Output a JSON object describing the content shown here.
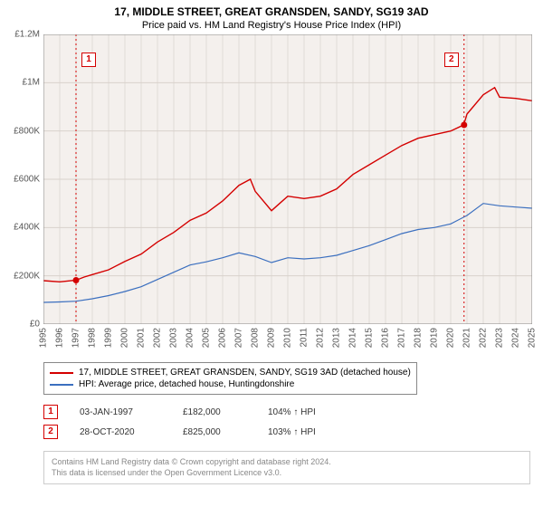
{
  "title": "17, MIDDLE STREET, GREAT GRANSDEN, SANDY, SG19 3AD",
  "subtitle": "Price paid vs. HM Land Registry's House Price Index (HPI)",
  "chart": {
    "type": "line",
    "plot_bg": "#f4f0ed",
    "grid_color": "#d9d2cc",
    "axis_color": "#888888",
    "x_years": [
      1995,
      1996,
      1997,
      1998,
      1999,
      2000,
      2001,
      2002,
      2003,
      2004,
      2005,
      2006,
      2007,
      2008,
      2009,
      2010,
      2011,
      2012,
      2013,
      2014,
      2015,
      2016,
      2017,
      2018,
      2019,
      2020,
      2021,
      2022,
      2023,
      2024,
      2025
    ],
    "ylim": [
      0,
      1200000
    ],
    "ytick_step": 200000,
    "ytick_labels": [
      "£0",
      "£200K",
      "£400K",
      "£600K",
      "£800K",
      "£1M",
      "£1.2M"
    ],
    "series": [
      {
        "name": "17, MIDDLE STREET, GREAT GRANSDEN, SANDY, SG19 3AD (detached house)",
        "color": "#d40000",
        "width": 1.4,
        "data": [
          [
            1995,
            180000
          ],
          [
            1996,
            175000
          ],
          [
            1997,
            182000
          ],
          [
            1997.5,
            195000
          ],
          [
            1998,
            205000
          ],
          [
            1999,
            225000
          ],
          [
            2000,
            260000
          ],
          [
            2001,
            290000
          ],
          [
            2002,
            340000
          ],
          [
            2003,
            380000
          ],
          [
            2004,
            430000
          ],
          [
            2005,
            460000
          ],
          [
            2006,
            510000
          ],
          [
            2007,
            575000
          ],
          [
            2007.7,
            600000
          ],
          [
            2008,
            550000
          ],
          [
            2009,
            470000
          ],
          [
            2009.5,
            500000
          ],
          [
            2010,
            530000
          ],
          [
            2011,
            520000
          ],
          [
            2012,
            530000
          ],
          [
            2013,
            560000
          ],
          [
            2014,
            620000
          ],
          [
            2015,
            660000
          ],
          [
            2016,
            700000
          ],
          [
            2017,
            740000
          ],
          [
            2018,
            770000
          ],
          [
            2019,
            785000
          ],
          [
            2020,
            800000
          ],
          [
            2020.8,
            825000
          ],
          [
            2021,
            870000
          ],
          [
            2022,
            950000
          ],
          [
            2022.7,
            980000
          ],
          [
            2023,
            940000
          ],
          [
            2024,
            935000
          ],
          [
            2025,
            925000
          ]
        ]
      },
      {
        "name": "HPI: Average price, detached house, Huntingdonshire",
        "color": "#3b6fbf",
        "width": 1.2,
        "data": [
          [
            1995,
            90000
          ],
          [
            1996,
            92000
          ],
          [
            1997,
            95000
          ],
          [
            1998,
            105000
          ],
          [
            1999,
            118000
          ],
          [
            2000,
            135000
          ],
          [
            2001,
            155000
          ],
          [
            2002,
            185000
          ],
          [
            2003,
            215000
          ],
          [
            2004,
            245000
          ],
          [
            2005,
            258000
          ],
          [
            2006,
            275000
          ],
          [
            2007,
            295000
          ],
          [
            2008,
            280000
          ],
          [
            2009,
            255000
          ],
          [
            2010,
            275000
          ],
          [
            2011,
            270000
          ],
          [
            2012,
            275000
          ],
          [
            2013,
            285000
          ],
          [
            2014,
            305000
          ],
          [
            2015,
            325000
          ],
          [
            2016,
            350000
          ],
          [
            2017,
            375000
          ],
          [
            2018,
            392000
          ],
          [
            2019,
            400000
          ],
          [
            2020,
            415000
          ],
          [
            2021,
            450000
          ],
          [
            2022,
            500000
          ],
          [
            2023,
            490000
          ],
          [
            2024,
            485000
          ],
          [
            2025,
            480000
          ]
        ]
      }
    ],
    "markers": [
      {
        "label": "1",
        "x": 1997.0,
        "y": 182000,
        "line_color": "#d40000",
        "dash": "2,3"
      },
      {
        "label": "2",
        "x": 2020.82,
        "y": 825000,
        "line_color": "#d40000",
        "dash": "2,3"
      }
    ]
  },
  "legend": [
    {
      "color": "#d40000",
      "label": "17, MIDDLE STREET, GREAT GRANSDEN, SANDY, SG19 3AD (detached house)"
    },
    {
      "color": "#3b6fbf",
      "label": "HPI: Average price, detached house, Huntingdonshire"
    }
  ],
  "transactions": [
    {
      "num": "1",
      "date": "03-JAN-1997",
      "price": "£182,000",
      "pct": "104%",
      "arrow": "↑",
      "suffix": "HPI"
    },
    {
      "num": "2",
      "date": "28-OCT-2020",
      "price": "£825,000",
      "pct": "103%",
      "arrow": "↑",
      "suffix": "HPI"
    }
  ],
  "footer_line1": "Contains HM Land Registry data © Crown copyright and database right 2024.",
  "footer_line2": "This data is licensed under the Open Government Licence v3.0.",
  "colors": {
    "marker_border": "#d40000",
    "text": "#333333",
    "footer_text": "#888888"
  }
}
